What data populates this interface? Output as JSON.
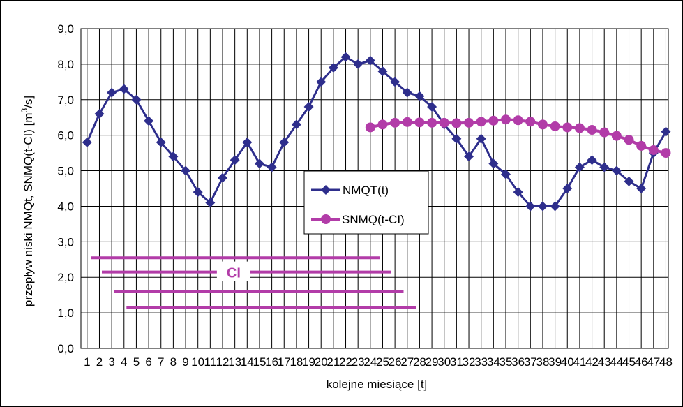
{
  "chart_data": {
    "type": "line",
    "xlabel": "kolejne miesiące [t]",
    "ylabel": "przepływ niski NMQt, SNMQ(t-CI) [m³/s]",
    "ylabel_parts": [
      "przepływ niski NMQt, SNMQ(t-CI) [m",
      "3",
      "/s]"
    ],
    "ylim": [
      0,
      9
    ],
    "xlim": [
      1,
      48
    ],
    "yticks": [
      "0,0",
      "1,0",
      "2,0",
      "3,0",
      "4,0",
      "5,0",
      "6,0",
      "7,0",
      "8,0",
      "9,0"
    ],
    "xticks": [
      "1",
      "3",
      "5",
      "7",
      "9",
      "11",
      "13",
      "15",
      "17",
      "19",
      "21",
      "23",
      "25",
      "27",
      "29",
      "31",
      "33",
      "35",
      "37",
      "39",
      "41",
      "43",
      "45",
      "47"
    ],
    "xticks_lower": [
      "2",
      "4",
      "6",
      "8",
      "10",
      "12",
      "14",
      "16",
      "18",
      "20",
      "22",
      "24",
      "26",
      "28",
      "30",
      "32",
      "34",
      "36",
      "38",
      "40",
      "42",
      "44",
      "46",
      "48"
    ],
    "grid": true,
    "legend_position": "center",
    "series": [
      {
        "name": "NMQT(t)",
        "color": "#2e2e8c",
        "marker": "diamond",
        "x": [
          1,
          2,
          3,
          4,
          5,
          6,
          7,
          8,
          9,
          10,
          11,
          12,
          13,
          14,
          15,
          16,
          17,
          18,
          19,
          20,
          21,
          22,
          23,
          24,
          25,
          26,
          27,
          28,
          29,
          30,
          31,
          32,
          33,
          34,
          35,
          36,
          37,
          38,
          39,
          40,
          41,
          42,
          43,
          44,
          45,
          46,
          47,
          48
        ],
        "values": [
          5.8,
          6.6,
          7.2,
          7.3,
          7.0,
          6.4,
          5.8,
          5.4,
          5.0,
          4.4,
          4.1,
          4.8,
          5.3,
          5.8,
          5.2,
          5.1,
          5.8,
          6.3,
          6.8,
          7.5,
          7.9,
          8.2,
          8.0,
          8.1,
          7.8,
          7.5,
          7.2,
          7.1,
          6.8,
          6.3,
          5.9,
          5.4,
          5.9,
          5.2,
          4.9,
          4.4,
          4.0,
          4.0,
          4.0,
          4.5,
          5.1,
          5.3,
          5.1,
          5.0,
          4.7,
          4.5,
          5.5,
          6.1
        ]
      },
      {
        "name": "SNMQ(t-CI)",
        "color": "#b23ca8",
        "marker": "circle",
        "x": [
          24,
          25,
          26,
          27,
          28,
          29,
          30,
          31,
          32,
          33,
          34,
          35,
          36,
          37,
          38,
          39,
          40,
          41,
          42,
          43,
          44,
          45,
          46,
          47,
          48
        ],
        "values": [
          6.22,
          6.3,
          6.35,
          6.37,
          6.36,
          6.35,
          6.35,
          6.34,
          6.35,
          6.38,
          6.41,
          6.44,
          6.42,
          6.38,
          6.3,
          6.25,
          6.22,
          6.2,
          6.15,
          6.08,
          5.98,
          5.87,
          5.7,
          5.58,
          5.5
        ]
      }
    ],
    "ci_label": "CI",
    "ci_bars": [
      {
        "y": 2.55,
        "from": 1.3,
        "to": 24.8
      },
      {
        "y": 2.15,
        "from": 2.2,
        "to": 25.7
      },
      {
        "y": 1.6,
        "from": 3.2,
        "to": 26.7
      },
      {
        "y": 1.15,
        "from": 4.2,
        "to": 27.7
      }
    ],
    "ci_color": "#b23ca8"
  }
}
